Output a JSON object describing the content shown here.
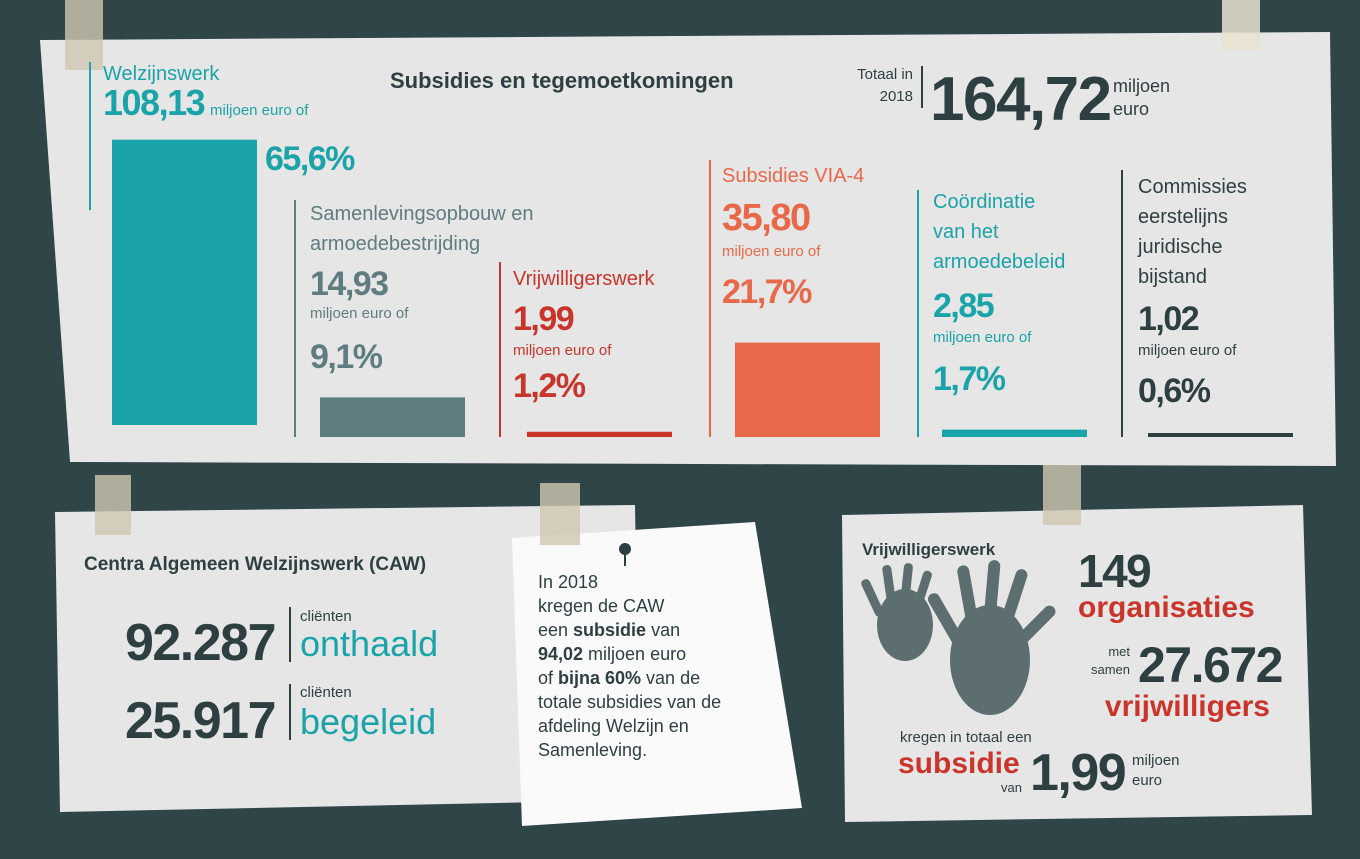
{
  "top": {
    "title": "Subsidies en tegemoetkomingen",
    "total": {
      "label_lines": [
        "Totaal in",
        "2018"
      ],
      "amount": "164,72",
      "unit_lines": [
        "miljoen",
        "euro"
      ]
    },
    "items": [
      {
        "name_lines": [
          "Welzijnswerk"
        ],
        "amount": "108,13",
        "unit": "miljoen euro of",
        "share": "65,6%",
        "color": "#1aa3a8"
      },
      {
        "name_lines": [
          "Samenlevingsopbouw en",
          "armoedebestrijding"
        ],
        "amount": "14,93",
        "unit": "miljoen euro of",
        "share": "9,1%",
        "color": "#5f7c80"
      },
      {
        "name_lines": [
          "Vrijwilligerswerk"
        ],
        "amount": "1,99",
        "unit": "miljoen euro of",
        "share": "1,2%",
        "color": "#c9352b"
      },
      {
        "name_lines": [
          "Subsidies VIA-4"
        ],
        "amount": "35,80",
        "unit": "miljoen euro of",
        "share": "21,7%",
        "color": "#e8684a"
      },
      {
        "name_lines": [
          "Coördinatie",
          "van het",
          "armoedebeleid"
        ],
        "amount": "2,85",
        "unit": "miljoen euro of",
        "share": "1,7%",
        "color": "#1aa3a8"
      },
      {
        "name_lines": [
          "Commissies",
          "eerstelijns",
          "juridische",
          "bijstand"
        ],
        "amount": "1,02",
        "unit": "miljoen euro of",
        "share": "0,6%",
        "color": "#2e3f42"
      }
    ]
  },
  "caw": {
    "title": "Centra Algemeen Welzijnswerk (CAW)",
    "stats": [
      {
        "number": "92.287",
        "small": "cliënten",
        "big": "onthaald"
      },
      {
        "number": "25.917",
        "small": "cliënten",
        "big": "begeleid"
      }
    ]
  },
  "note": {
    "lines": [
      [
        "In 2018"
      ],
      [
        "kregen de CAW"
      ],
      [
        "een ",
        "subsidie",
        " van"
      ],
      [
        "",
        "94,02",
        " miljoen euro"
      ],
      [
        "of ",
        "bijna 60%",
        " van de"
      ],
      [
        "totale subsidies van de"
      ],
      [
        "afdeling Welzijn en"
      ],
      [
        "Samenleving."
      ]
    ]
  },
  "volunteers": {
    "title": "Vrijwilligerswerk",
    "orgs": "149",
    "orgs_label": "organisaties",
    "with_lines": [
      "met",
      "samen"
    ],
    "count": "27.672",
    "count_label": "vrijwilligers",
    "received": "kregen in totaal een",
    "subsidy": "subsidie",
    "of": "van",
    "amount": "1,99",
    "unit_lines": [
      "miljoen",
      "euro"
    ]
  }
}
